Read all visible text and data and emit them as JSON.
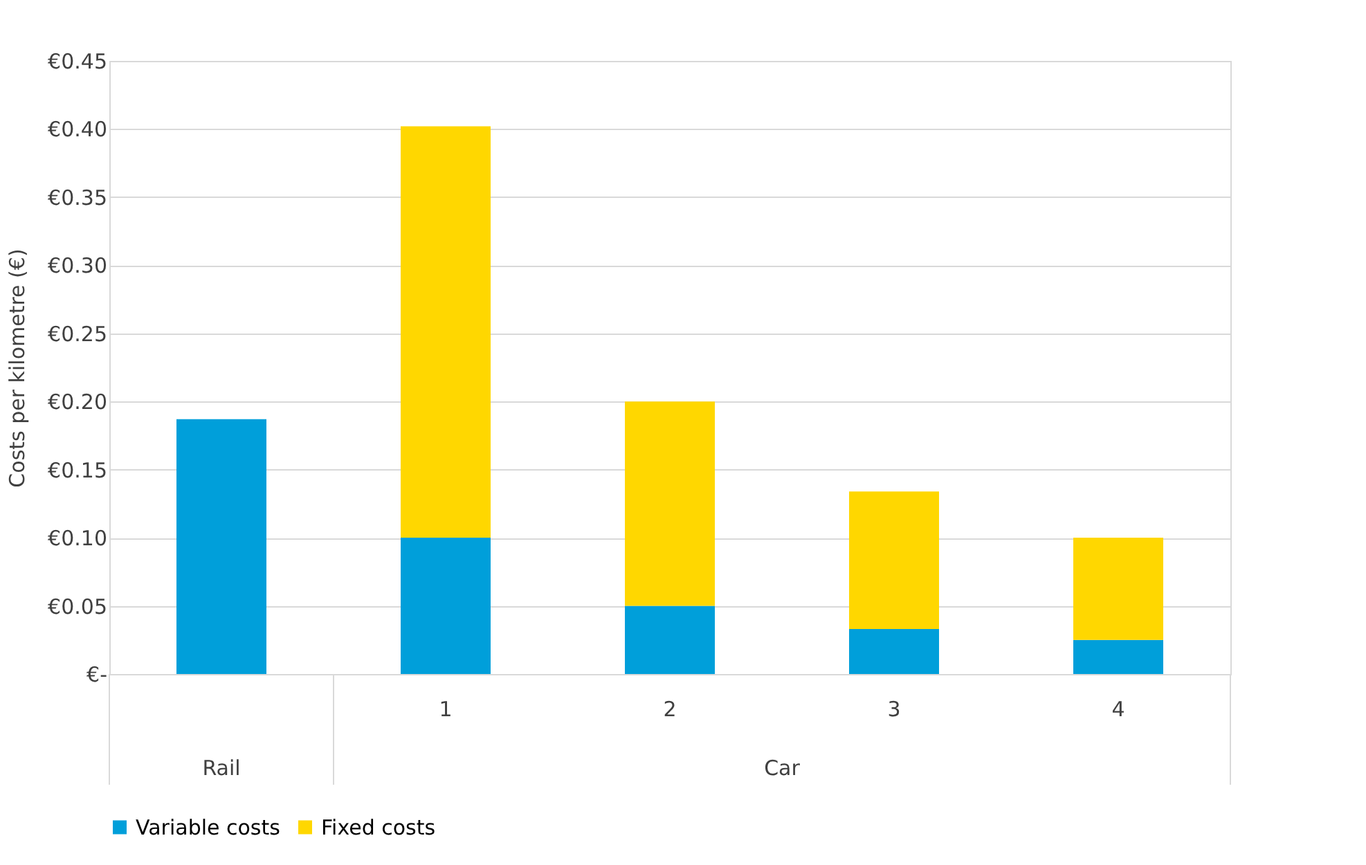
{
  "chart_data": {
    "type": "bar",
    "stacked": true,
    "ylabel": "Costs per kilometre (€)",
    "categories": [
      null,
      "1",
      "2",
      "3",
      "4"
    ],
    "annotations": [
      "Rail",
      "Car"
    ],
    "series": [
      {
        "name": "Variable costs",
        "color": "#009fda",
        "values": [
          0.187,
          0.1,
          0.05,
          0.033,
          0.025
        ]
      },
      {
        "name": "Fixed costs",
        "color": "#ffd700",
        "values": [
          null,
          0.302,
          0.15,
          0.101,
          0.075
        ]
      }
    ],
    "ylim": [
      0,
      0.45
    ],
    "yticks": [
      {
        "value": 0,
        "label": "€-"
      },
      {
        "value": 0.05,
        "label": "€0.05"
      },
      {
        "value": 0.1,
        "label": "€0.10"
      },
      {
        "value": 0.15,
        "label": "€0.15"
      },
      {
        "value": 0.2,
        "label": "€0.20"
      },
      {
        "value": 0.25,
        "label": "€0.25"
      },
      {
        "value": 0.3,
        "label": "€0.30"
      },
      {
        "value": 0.35,
        "label": "€0.35"
      },
      {
        "value": 0.4,
        "label": "€0.40"
      },
      {
        "value": 0.45,
        "label": "€0.45"
      }
    ],
    "grid": "y",
    "legend": "bottom"
  }
}
